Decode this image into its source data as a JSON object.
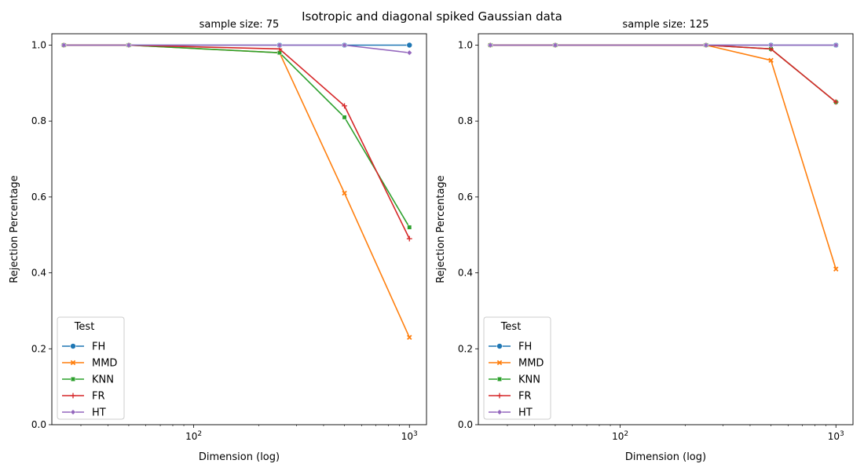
{
  "figure": {
    "suptitle": "Isotropic and diagonal spiked Gaussian data"
  },
  "chart_data": [
    {
      "type": "line",
      "title": "sample size: 75",
      "xlabel": "Dimension (log)",
      "ylabel": "Rejection Percentage",
      "xscale": "log",
      "x": [
        25,
        50,
        250,
        500,
        1000
      ],
      "xtick_labels": [
        {
          "value": 100,
          "base": "10",
          "exp": "2"
        },
        {
          "value": 1000,
          "base": "10",
          "exp": "3"
        }
      ],
      "yticks": [
        0.0,
        0.2,
        0.4,
        0.6,
        0.8,
        1.0
      ],
      "ytick_labels": [
        "0.0",
        "0.2",
        "0.4",
        "0.6",
        "0.8",
        "1.0"
      ],
      "xlim": [
        22,
        1200
      ],
      "ylim": [
        0.0,
        1.03
      ],
      "grid": false,
      "legend": {
        "title": "Test",
        "placement": "lower-left"
      },
      "series": [
        {
          "name": "FH",
          "color": "#1f77b4",
          "marker": "circle",
          "values": [
            1.0,
            1.0,
            1.0,
            1.0,
            1.0
          ]
        },
        {
          "name": "MMD",
          "color": "#ff7f0e",
          "marker": "x",
          "values": [
            1.0,
            1.0,
            0.98,
            0.61,
            0.23
          ]
        },
        {
          "name": "KNN",
          "color": "#2ca02c",
          "marker": "square",
          "values": [
            1.0,
            1.0,
            0.98,
            0.81,
            0.52
          ]
        },
        {
          "name": "FR",
          "color": "#d62728",
          "marker": "plus",
          "values": [
            1.0,
            1.0,
            0.99,
            0.84,
            0.49
          ]
        },
        {
          "name": "HT",
          "color": "#9467bd",
          "marker": "diamond",
          "values": [
            1.0,
            1.0,
            1.0,
            1.0,
            0.98
          ]
        }
      ]
    },
    {
      "type": "line",
      "title": "sample size: 125",
      "xlabel": "Dimension (log)",
      "ylabel": "Rejection Percentage",
      "xscale": "log",
      "x": [
        25,
        50,
        250,
        500,
        1000
      ],
      "xtick_labels": [
        {
          "value": 100,
          "base": "10",
          "exp": "2"
        },
        {
          "value": 1000,
          "base": "10",
          "exp": "3"
        }
      ],
      "yticks": [
        0.0,
        0.2,
        0.4,
        0.6,
        0.8,
        1.0
      ],
      "ytick_labels": [
        "0.0",
        "0.2",
        "0.4",
        "0.6",
        "0.8",
        "1.0"
      ],
      "xlim": [
        22,
        1200
      ],
      "ylim": [
        0.0,
        1.03
      ],
      "grid": false,
      "legend": {
        "title": "Test",
        "placement": "lower-left"
      },
      "series": [
        {
          "name": "FH",
          "color": "#1f77b4",
          "marker": "circle",
          "values": [
            1.0,
            1.0,
            1.0,
            1.0,
            1.0
          ]
        },
        {
          "name": "MMD",
          "color": "#ff7f0e",
          "marker": "x",
          "values": [
            1.0,
            1.0,
            1.0,
            0.96,
            0.41
          ]
        },
        {
          "name": "KNN",
          "color": "#2ca02c",
          "marker": "square",
          "values": [
            1.0,
            1.0,
            1.0,
            0.99,
            0.85
          ]
        },
        {
          "name": "FR",
          "color": "#d62728",
          "marker": "plus",
          "values": [
            1.0,
            1.0,
            1.0,
            0.99,
            0.85
          ]
        },
        {
          "name": "HT",
          "color": "#9467bd",
          "marker": "diamond",
          "values": [
            1.0,
            1.0,
            1.0,
            1.0,
            1.0
          ]
        }
      ]
    }
  ]
}
